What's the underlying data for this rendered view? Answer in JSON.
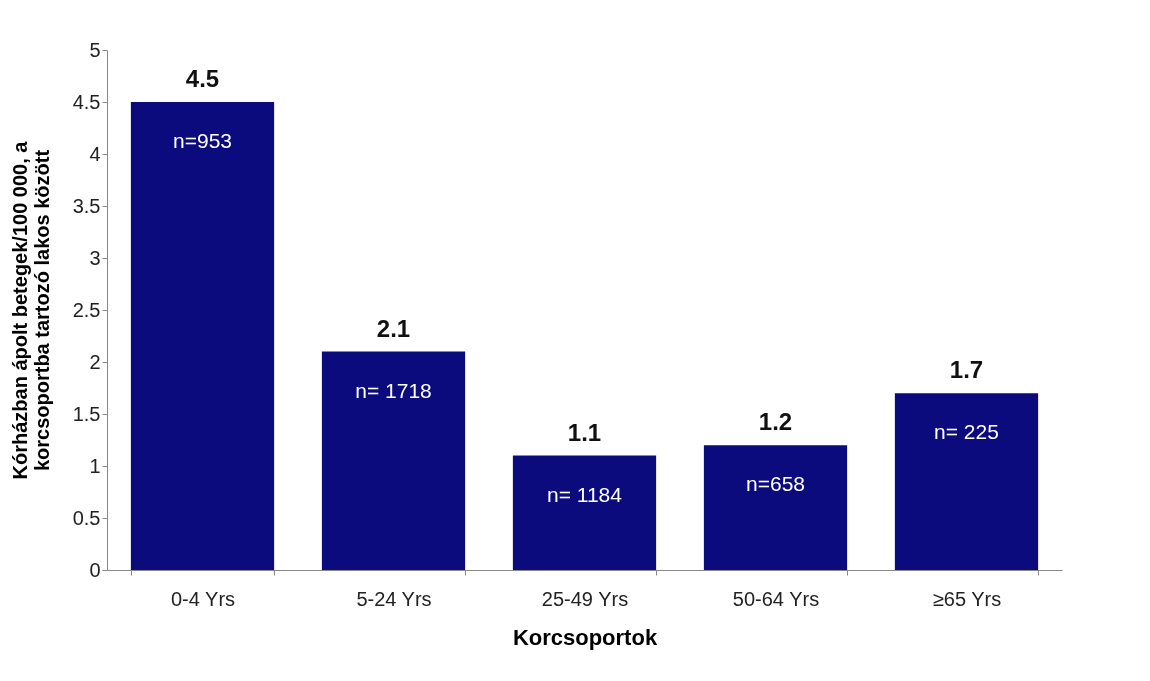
{
  "chart_data": {
    "type": "bar",
    "xlabel": "Korcsoportok",
    "ylabel": "Kórházban ápolt betegek/100 000, a\nkorcsoportba tartozó lakos között",
    "categories": [
      "0-4 Yrs",
      "5-24 Yrs",
      "25-49 Yrs",
      "50-64 Yrs",
      "≥65 Yrs"
    ],
    "values": [
      4.5,
      2.1,
      1.1,
      1.2,
      1.7
    ],
    "color": "#0b0b7e",
    "ylim": [
      0,
      5
    ],
    "yticks": [
      0,
      0.5,
      1,
      1.5,
      2,
      2.5,
      3,
      3.5,
      4,
      4.5,
      5
    ],
    "data_labels": true,
    "annotations": [
      "n=953",
      "n= 1718",
      "n= 1184",
      "n=658",
      "n= 225"
    ]
  }
}
